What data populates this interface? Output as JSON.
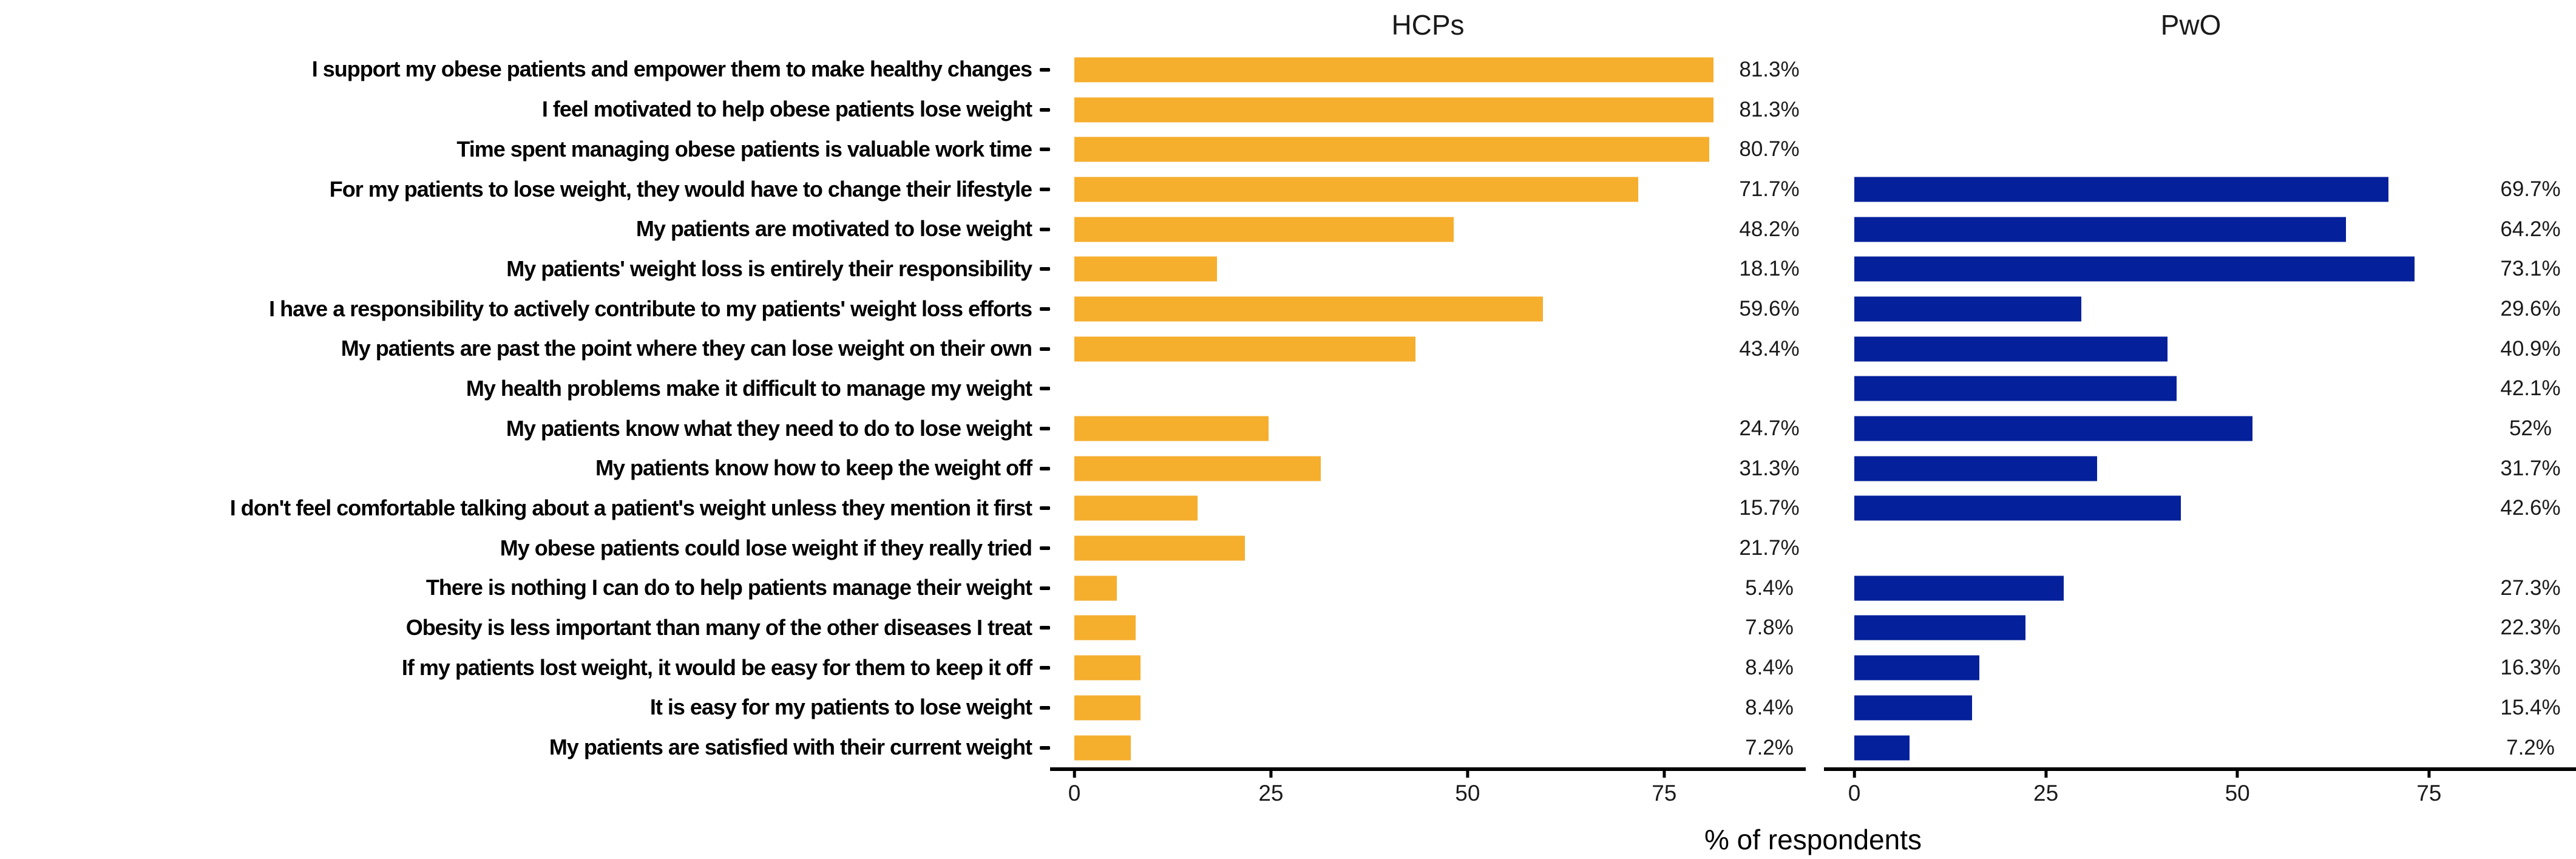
{
  "chart_data": {
    "type": "bar",
    "orientation": "horizontal",
    "xlabel": "% of respondents",
    "x_ticks": [
      0,
      25,
      50,
      75
    ],
    "axis_max": 93,
    "grid": false,
    "legend": "none",
    "panels": [
      {
        "name": "HCPs",
        "bar_color": "#F6AE2D"
      },
      {
        "name": "PwO",
        "bar_color": "#04209B"
      }
    ],
    "categories": [
      "I support my obese patients and empower them to make healthy changes",
      "I feel motivated to help obese patients lose weight",
      "Time spent managing obese patients is valuable work time",
      "For my patients to lose weight, they would have to change their lifestyle",
      "My patients are motivated to lose weight",
      "My patients' weight loss is entirely their responsibility",
      "I have a responsibility to actively contribute to my patients' weight loss efforts",
      "My patients are past the point where they can lose weight on their own",
      "My health problems make it difficult to manage my weight",
      "My patients know what they need to do to lose weight",
      "My patients know how to keep the weight off",
      "I don't feel comfortable talking about a patient's weight unless they mention it first",
      "My obese patients could lose weight if they really tried",
      "There is nothing I can do to help patients manage their weight",
      "Obesity is less important than many of the other diseases I treat",
      "If my patients lost weight, it would be easy for them to keep it off",
      "It is easy for my patients to lose weight",
      "My patients are satisfied with their current weight"
    ],
    "series": [
      {
        "name": "HCPs",
        "values": [
          81.3,
          81.3,
          80.7,
          71.7,
          48.2,
          18.1,
          59.6,
          43.4,
          null,
          24.7,
          31.3,
          15.7,
          21.7,
          5.4,
          7.8,
          8.4,
          8.4,
          7.2
        ],
        "labels": [
          "81.3%",
          "81.3%",
          "80.7%",
          "71.7%",
          "48.2%",
          "18.1%",
          "59.6%",
          "43.4%",
          "",
          "24.7%",
          "31.3%",
          "15.7%",
          "21.7%",
          "5.4%",
          "7.8%",
          "8.4%",
          "8.4%",
          "7.2%"
        ]
      },
      {
        "name": "PwO",
        "values": [
          null,
          null,
          null,
          69.7,
          64.2,
          73.1,
          29.6,
          40.9,
          42.1,
          52,
          31.7,
          42.6,
          null,
          27.3,
          22.3,
          16.3,
          15.4,
          7.2
        ],
        "labels": [
          "",
          "",
          "",
          "69.7%",
          "64.2%",
          "73.1%",
          "29.6%",
          "40.9%",
          "42.1%",
          "52%",
          "31.7%",
          "42.6%",
          "",
          "27.3%",
          "22.3%",
          "16.3%",
          "15.4%",
          "7.2%"
        ]
      }
    ]
  }
}
